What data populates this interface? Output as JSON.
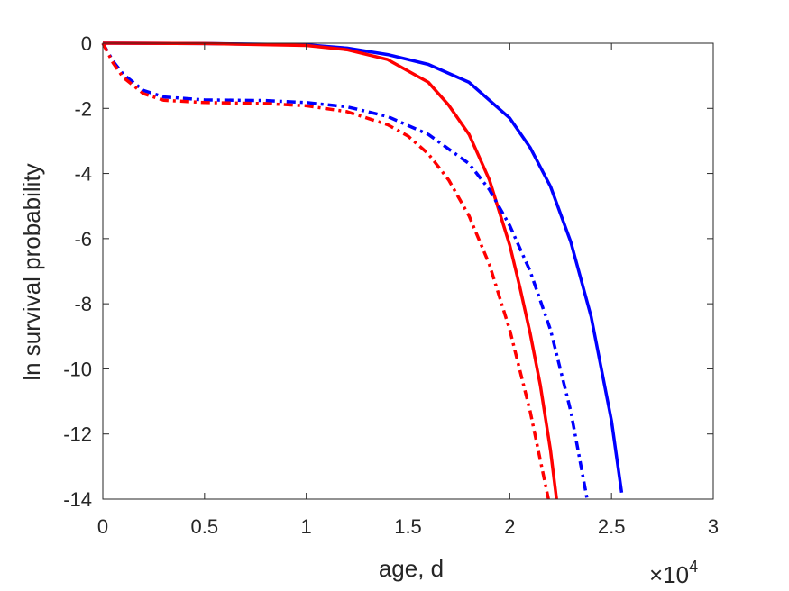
{
  "chart_data": {
    "type": "line",
    "title": "",
    "xlabel": "age, d",
    "ylabel": "ln survival probability",
    "x_exponent_label": {
      "base": "×10",
      "exponent": "4"
    },
    "xlim": [
      0,
      3
    ],
    "ylim": [
      -14,
      0
    ],
    "xticks": [
      "0",
      "0.5",
      "1",
      "1.5",
      "2",
      "2.5",
      "3"
    ],
    "yticks": [
      "0",
      "-2",
      "-4",
      "-6",
      "-8",
      "-10",
      "-12",
      "-14"
    ],
    "grid": false,
    "legend": false,
    "series": [
      {
        "color": "#0000FF",
        "style": "solid",
        "x": [
          0,
          0.5,
          1.0,
          1.2,
          1.4,
          1.6,
          1.8,
          2.0,
          2.1,
          2.2,
          2.3,
          2.4,
          2.5,
          2.55
        ],
        "y": [
          0,
          -0.01,
          -0.05,
          -0.15,
          -0.35,
          -0.65,
          -1.2,
          -2.3,
          -3.2,
          -4.4,
          -6.1,
          -8.4,
          -11.6,
          -13.8
        ]
      },
      {
        "color": "#FF0000",
        "style": "solid",
        "x": [
          0,
          0.5,
          1.0,
          1.2,
          1.4,
          1.6,
          1.7,
          1.8,
          1.9,
          2.0,
          2.05,
          2.1,
          2.15,
          2.2,
          2.23
        ],
        "y": [
          0,
          -0.01,
          -0.07,
          -0.2,
          -0.5,
          -1.2,
          -1.9,
          -2.8,
          -4.2,
          -6.2,
          -7.5,
          -8.9,
          -10.5,
          -12.5,
          -14.0
        ]
      },
      {
        "color": "#0000FF",
        "style": "dashdot",
        "x": [
          0,
          0.05,
          0.1,
          0.2,
          0.3,
          0.5,
          0.8,
          1.0,
          1.2,
          1.4,
          1.6,
          1.8,
          1.9,
          2.0,
          2.1,
          2.2,
          2.3,
          2.38
        ],
        "y": [
          0,
          -0.55,
          -0.95,
          -1.45,
          -1.65,
          -1.74,
          -1.76,
          -1.82,
          -1.95,
          -2.25,
          -2.8,
          -3.7,
          -4.5,
          -5.6,
          -7.0,
          -8.8,
          -11.3,
          -14.0
        ]
      },
      {
        "color": "#FF0000",
        "style": "dashdot",
        "x": [
          0,
          0.05,
          0.1,
          0.2,
          0.3,
          0.5,
          0.8,
          1.0,
          1.2,
          1.4,
          1.5,
          1.6,
          1.7,
          1.8,
          1.9,
          2.0,
          2.1,
          2.19
        ],
        "y": [
          0,
          -0.6,
          -1.05,
          -1.55,
          -1.75,
          -1.82,
          -1.85,
          -1.92,
          -2.1,
          -2.5,
          -2.85,
          -3.4,
          -4.2,
          -5.3,
          -6.8,
          -8.8,
          -11.3,
          -14.0
        ]
      }
    ]
  }
}
